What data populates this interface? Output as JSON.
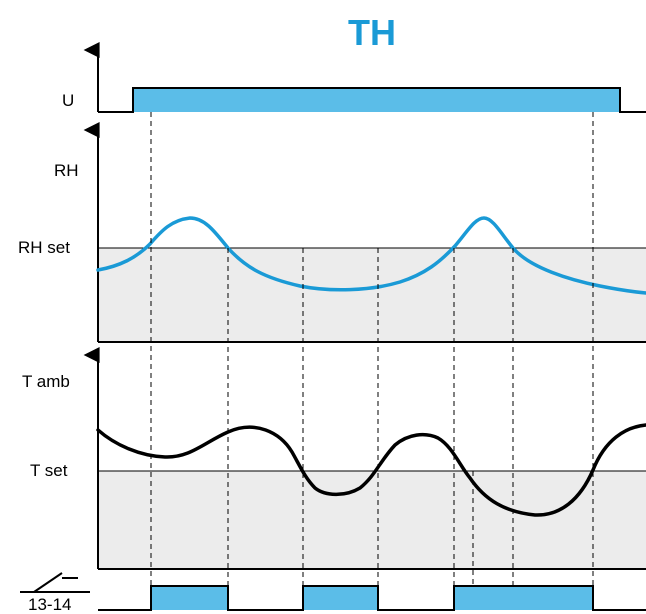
{
  "title": "TH",
  "labels": {
    "u": "U",
    "rh": "RH",
    "rh_set": "RH set",
    "t_amb": "T amb",
    "t_set": "T set",
    "contact": "13-14"
  },
  "colors": {
    "accent": "#5bbde8",
    "title": "#1a9ad6",
    "rh_curve": "#1a9ad6",
    "shade": "#ececec",
    "line": "#000000"
  }
}
